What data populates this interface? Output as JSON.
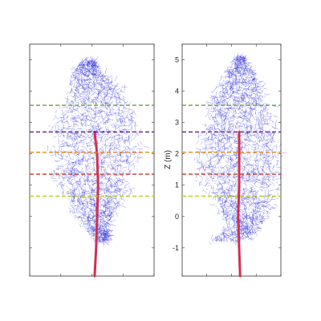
{
  "chart_data": [
    {
      "type": "scatter",
      "title": "",
      "xlabel": "",
      "ylabel": "",
      "ylim": [
        -1.9,
        5.5
      ],
      "yticks": [
        -1,
        0,
        1,
        2,
        3,
        4,
        5
      ],
      "ytick_labels_visible": false,
      "grid": false,
      "series": [
        {
          "kind": "crown-points",
          "color": "#1a1adb",
          "crown_profile": [
            {
              "z": -0.8,
              "x_left": -0.05,
              "x_right": 0.25
            },
            {
              "z": -0.3,
              "x_left": -0.35,
              "x_right": 0.3
            },
            {
              "z": 0.2,
              "x_left": -0.6,
              "x_right": 0.45
            },
            {
              "z": 0.7,
              "x_left": -0.75,
              "x_right": 0.7
            },
            {
              "z": 1.2,
              "x_left": -1.05,
              "x_right": 0.7
            },
            {
              "z": 1.7,
              "x_left": -0.95,
              "x_right": 0.9
            },
            {
              "z": 2.2,
              "x_left": -1.15,
              "x_right": 1.0
            },
            {
              "z": 2.7,
              "x_left": -1.0,
              "x_right": 0.95
            },
            {
              "z": 3.2,
              "x_left": -0.95,
              "x_right": 0.85
            },
            {
              "z": 3.7,
              "x_left": -0.75,
              "x_right": 0.75
            },
            {
              "z": 4.2,
              "x_left": -0.6,
              "x_right": 0.45
            },
            {
              "z": 4.7,
              "x_left": -0.55,
              "x_right": 0.1
            },
            {
              "z": 5.0,
              "x_left": -0.3,
              "x_right": -0.05
            }
          ]
        },
        {
          "kind": "stem",
          "color": "#d03050",
          "stem_path": [
            {
              "z": -1.9,
              "x": -0.05
            },
            {
              "z": -1.0,
              "x": -0.02
            },
            {
              "z": 0.0,
              "x": 0.0
            },
            {
              "z": 1.0,
              "x": 0.02
            },
            {
              "z": 2.0,
              "x": 0.0
            },
            {
              "z": 2.7,
              "x": -0.05
            }
          ]
        }
      ],
      "horizontal_lines": [
        {
          "z": 0.65,
          "color": "#b8cc10"
        },
        {
          "z": 1.35,
          "color": "#c0392b"
        },
        {
          "z": 2.05,
          "color": "#e8870e"
        },
        {
          "z": 2.7,
          "color": "#5a1e82"
        },
        {
          "z": 3.55,
          "color": "#5fa832"
        }
      ]
    },
    {
      "type": "scatter",
      "title": "",
      "xlabel": "",
      "ylabel": "Z (m)",
      "ylim": [
        -1.9,
        5.5
      ],
      "yticks": [
        -1,
        0,
        1,
        2,
        3,
        4,
        5
      ],
      "ytick_labels": [
        "-1",
        "0",
        "1",
        "2",
        "3",
        "4",
        "5"
      ],
      "grid": false,
      "series": [
        {
          "kind": "crown-points",
          "color": "#1a1adb",
          "crown_profile": [
            {
              "z": -0.8,
              "x_left": -0.7,
              "x_right": 0.2
            },
            {
              "z": -0.3,
              "x_left": -0.25,
              "x_right": 0.45
            },
            {
              "z": 0.2,
              "x_left": -0.55,
              "x_right": 0.7
            },
            {
              "z": 0.7,
              "x_left": -0.75,
              "x_right": 0.8
            },
            {
              "z": 1.2,
              "x_left": -0.95,
              "x_right": 0.85
            },
            {
              "z": 1.7,
              "x_left": -1.0,
              "x_right": 0.9
            },
            {
              "z": 2.2,
              "x_left": -0.95,
              "x_right": 0.95
            },
            {
              "z": 2.7,
              "x_left": -0.9,
              "x_right": 0.85
            },
            {
              "z": 3.2,
              "x_left": -0.85,
              "x_right": 0.8
            },
            {
              "z": 3.7,
              "x_left": -0.7,
              "x_right": 0.65
            },
            {
              "z": 4.2,
              "x_left": -0.5,
              "x_right": 0.5
            },
            {
              "z": 4.7,
              "x_left": -0.3,
              "x_right": 0.3
            },
            {
              "z": 5.1,
              "x_left": -0.1,
              "x_right": 0.1
            }
          ]
        },
        {
          "kind": "stem",
          "color": "#d03050",
          "stem_path": [
            {
              "z": -1.9,
              "x": 0.02
            },
            {
              "z": -1.0,
              "x": 0.0
            },
            {
              "z": 0.0,
              "x": -0.02
            },
            {
              "z": 1.0,
              "x": 0.0
            },
            {
              "z": 2.0,
              "x": 0.0
            },
            {
              "z": 2.7,
              "x": 0.0
            }
          ]
        }
      ],
      "horizontal_lines": [
        {
          "z": 0.65,
          "color": "#b8cc10"
        },
        {
          "z": 1.35,
          "color": "#c0392b"
        },
        {
          "z": 2.05,
          "color": "#e8870e"
        },
        {
          "z": 2.7,
          "color": "#5a1e82"
        },
        {
          "z": 3.55,
          "color": "#5fa832"
        }
      ]
    }
  ]
}
